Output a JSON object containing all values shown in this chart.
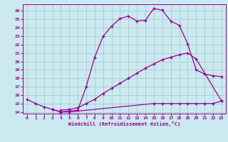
{
  "bg_color": "#cce8f0",
  "line_color": "#990099",
  "grid_color": "#99ccbb",
  "spine_color": "#990099",
  "xlim": [
    -0.5,
    23.5
  ],
  "ylim": [
    13.8,
    26.8
  ],
  "xticks": [
    0,
    1,
    2,
    3,
    4,
    5,
    6,
    7,
    8,
    9,
    10,
    11,
    12,
    13,
    14,
    15,
    16,
    17,
    18,
    19,
    20,
    21,
    22,
    23
  ],
  "yticks": [
    14,
    15,
    16,
    17,
    18,
    19,
    20,
    21,
    22,
    23,
    24,
    25,
    26
  ],
  "xlabel": "Windchill (Refroidissement éolien,°C)",
  "line1_x": [
    0,
    1,
    2,
    3,
    4,
    5,
    15,
    16,
    17,
    18,
    19,
    20,
    21,
    22,
    23
  ],
  "line1_y": [
    15.5,
    15.0,
    14.6,
    14.3,
    14.0,
    14.0,
    15.0,
    15.0,
    15.0,
    15.0,
    15.0,
    15.0,
    15.0,
    15.0,
    15.3
  ],
  "line2_x": [
    4,
    5,
    6,
    7,
    8,
    9,
    10,
    11,
    12,
    13,
    14,
    15,
    16,
    17,
    18,
    19,
    20,
    23
  ],
  "line2_y": [
    14.2,
    14.3,
    14.5,
    15.0,
    15.5,
    16.2,
    16.8,
    17.4,
    18.0,
    18.6,
    19.2,
    19.7,
    20.2,
    20.5,
    20.8,
    21.0,
    20.3,
    15.3
  ],
  "line3_x": [
    3,
    4,
    5,
    6,
    7,
    8,
    9,
    10,
    11,
    12,
    13,
    14,
    15,
    16,
    17,
    18,
    19,
    20,
    21,
    22,
    23
  ],
  "line3_y": [
    14.3,
    14.0,
    14.1,
    14.2,
    17.0,
    20.5,
    23.0,
    24.2,
    25.1,
    25.4,
    24.8,
    24.9,
    26.3,
    26.1,
    24.8,
    24.3,
    22.1,
    19.0,
    18.5,
    18.3,
    18.2
  ]
}
